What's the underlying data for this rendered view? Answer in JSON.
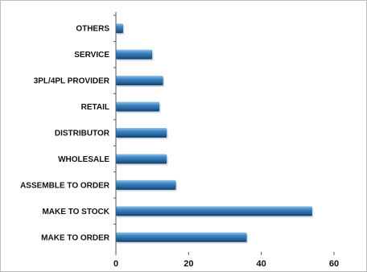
{
  "chart_data": {
    "type": "bar",
    "orientation": "horizontal",
    "categories": [
      "OTHERS",
      "SERVICE",
      "3PL/4PL PROVIDER",
      "RETAIL",
      "DISTRIBUTOR",
      "WHOLESALE",
      "ASSEMBLE TO ORDER",
      "MAKE TO STOCK",
      "MAKE TO ORDER"
    ],
    "values": [
      2,
      10,
      13,
      12,
      14,
      14,
      16.5,
      54,
      36
    ],
    "xlim": [
      0,
      60
    ],
    "xticks": [
      0,
      20,
      40,
      60
    ],
    "title": "",
    "xlabel": "",
    "ylabel": "",
    "grid": false,
    "legend": "none",
    "bar_color": "#2f6fa6",
    "bar_highlight": "#8fc2ea",
    "bar_shadow": "#153e66"
  }
}
